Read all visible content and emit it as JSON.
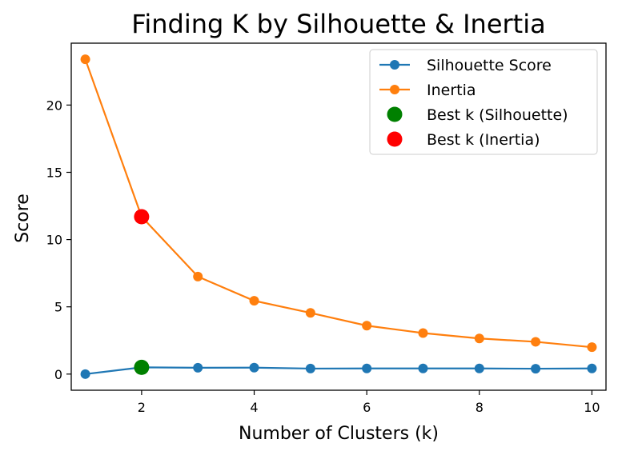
{
  "chart_data": {
    "type": "line",
    "title": "Finding K by Silhouette & Inertia",
    "xlabel": "Number of Clusters (k)",
    "ylabel": "Score",
    "x": [
      1,
      2,
      3,
      4,
      5,
      6,
      7,
      8,
      9,
      10
    ],
    "xlim": [
      0.75,
      10.25
    ],
    "ylim": [
      -1.2,
      24.6
    ],
    "xticks": [
      2,
      4,
      6,
      8,
      10
    ],
    "yticks": [
      0,
      5,
      10,
      15,
      20
    ],
    "grid": false,
    "legend_position": "top-right",
    "series": [
      {
        "name": "Silhouette Score",
        "color": "#1f77b4",
        "values": [
          0.0,
          0.5,
          0.47,
          0.48,
          0.41,
          0.42,
          0.42,
          0.42,
          0.4,
          0.42
        ]
      },
      {
        "name": "Inertia",
        "color": "#ff7f0e",
        "values": [
          23.4,
          11.7,
          7.25,
          5.45,
          4.55,
          3.6,
          3.05,
          2.65,
          2.4,
          2.0
        ]
      }
    ],
    "highlights": [
      {
        "name": "Best k (Silhouette)",
        "color": "#008000",
        "x": 2,
        "y": 0.5
      },
      {
        "name": "Best k (Inertia)",
        "color": "#ff0000",
        "x": 2,
        "y": 11.7
      }
    ]
  }
}
